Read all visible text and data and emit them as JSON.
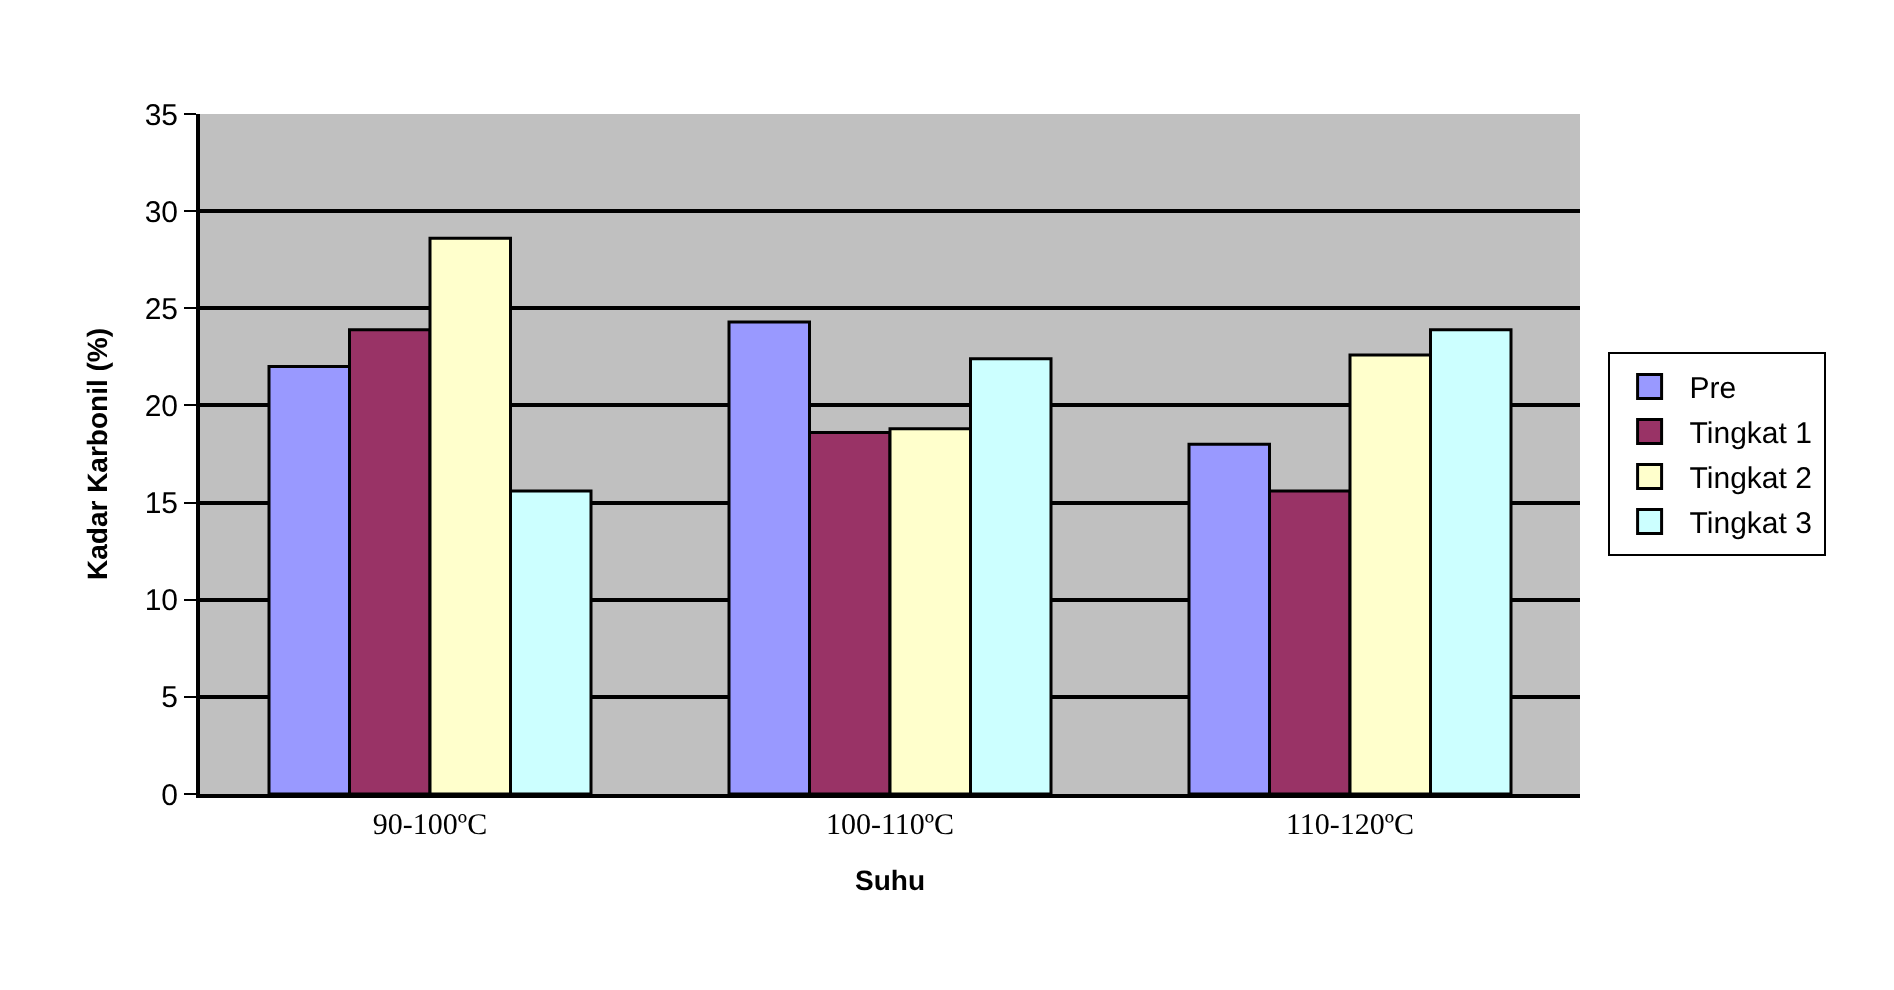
{
  "chart_data": {
    "type": "bar",
    "xlabel": "Suhu",
    "ylabel": "Kadar Karbonil (%)",
    "categories": [
      "90-100ºC",
      "100-110ºC",
      "110-120ºC"
    ],
    "series": [
      {
        "name": "Pre",
        "color": "#9999ff",
        "values": [
          22.0,
          24.3,
          18.0
        ]
      },
      {
        "name": "Tingkat 1",
        "color": "#993366",
        "values": [
          23.9,
          18.6,
          15.6
        ]
      },
      {
        "name": "Tingkat 2",
        "color": "#ffffcc",
        "values": [
          28.6,
          18.8,
          22.6
        ]
      },
      {
        "name": "Tingkat 3",
        "color": "#ccffff",
        "values": [
          15.6,
          22.4,
          23.9
        ]
      }
    ],
    "ylim": [
      0,
      35
    ],
    "yticks": [
      0,
      5,
      10,
      15,
      20,
      25,
      30,
      35
    ],
    "grid": "y",
    "legend": "right"
  }
}
